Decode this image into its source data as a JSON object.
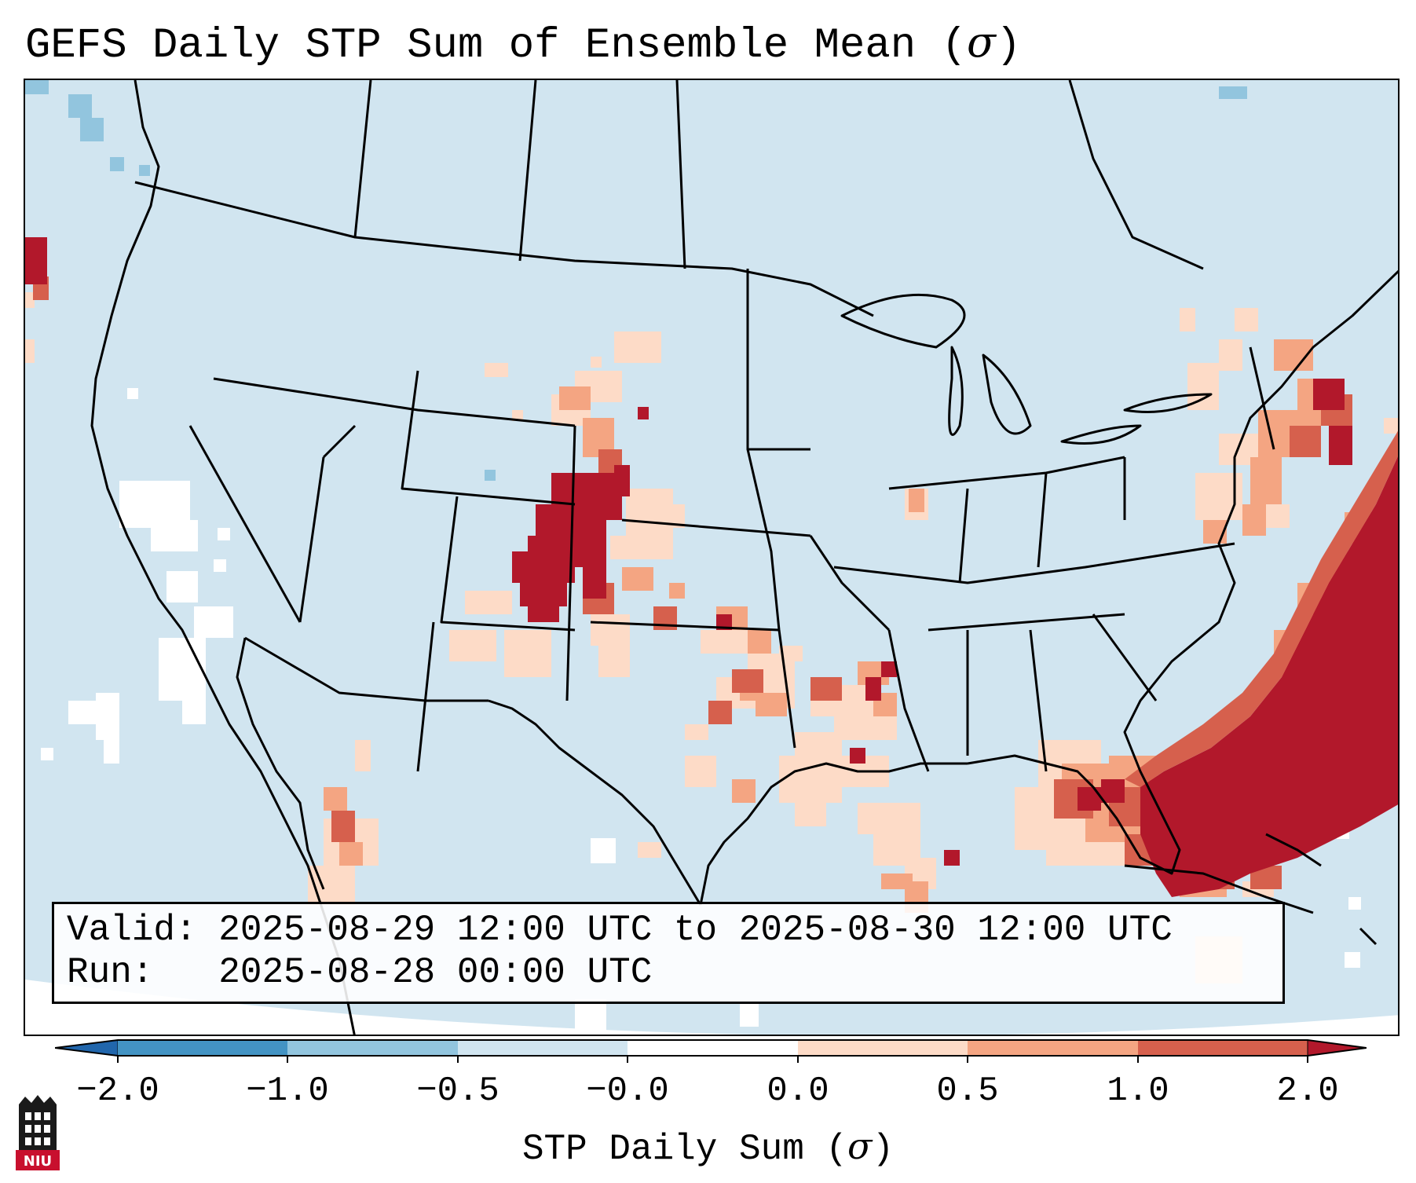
{
  "title": "GEFS Daily STP Sum of Ensemble Mean (",
  "title_sigma": "σ",
  "title_close": ")",
  "info": {
    "valid": "Valid: 2025-08-29 12:00 UTC to 2025-08-30 12:00 UTC",
    "run": "Run:   2025-08-28 00:00 UTC"
  },
  "colorbar": {
    "ticks": [
      "−2.0",
      "−1.0",
      "−0.5",
      "−0.0",
      "0.0",
      "0.5",
      "1.0",
      "2.0"
    ],
    "bins": [
      {
        "range": "<-2.0",
        "color": "#2166ac"
      },
      {
        "range": "-2.0 to -1.0",
        "color": "#4393c3"
      },
      {
        "range": "-1.0 to -0.5",
        "color": "#92c5de"
      },
      {
        "range": "-0.5 to -0.0",
        "color": "#d1e5f0"
      },
      {
        "range": "-0.0 to 0.0",
        "color": "#ffffff"
      },
      {
        "range": "0.0 to 0.5",
        "color": "#fddbc7"
      },
      {
        "range": "0.5 to 1.0",
        "color": "#f4a582"
      },
      {
        "range": "1.0 to 2.0",
        "color": "#d6604d"
      },
      {
        "range": ">2.0",
        "color": "#b2182b"
      }
    ],
    "label": "STP Daily Sum (",
    "label_sigma": "σ",
    "label_close": ")"
  },
  "logo": {
    "text": "NIU"
  },
  "colors": {
    "background_field": "#d1e5f0",
    "strong_positive": "#b2182b",
    "border": "#000000"
  }
}
